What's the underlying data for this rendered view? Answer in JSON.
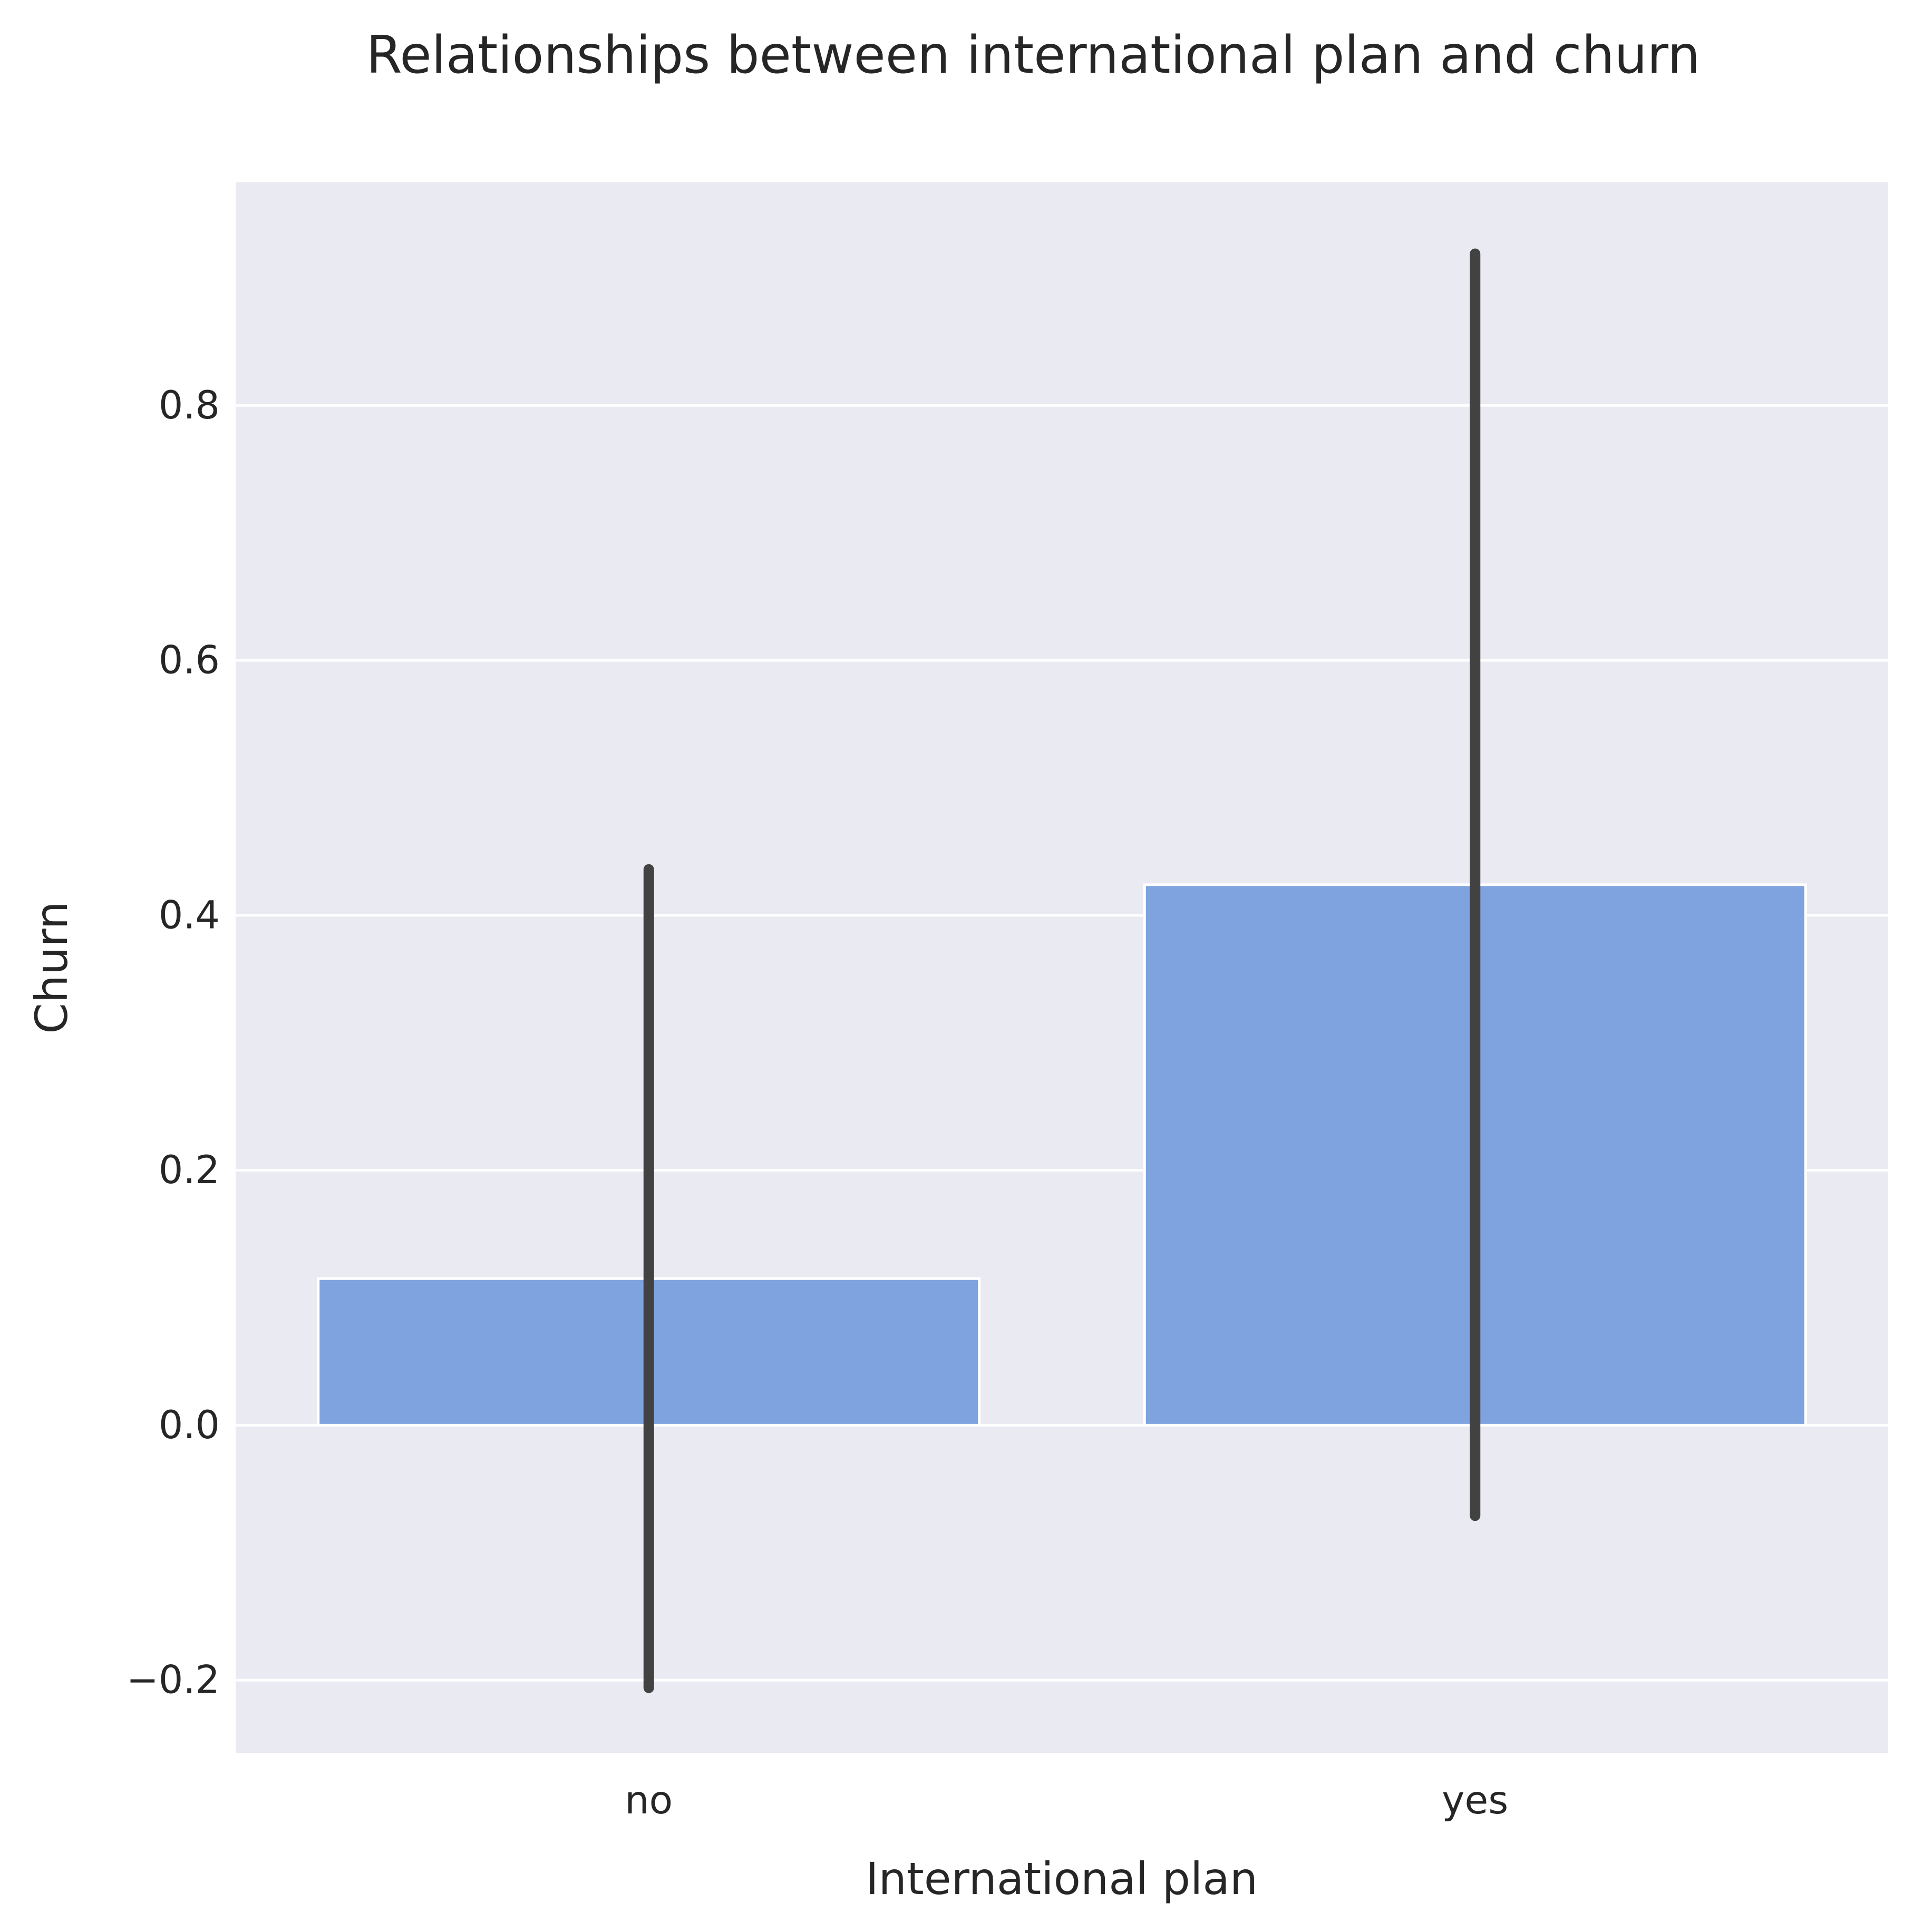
{
  "chart_data": {
    "type": "bar",
    "title": "Relationships between international plan and churn",
    "xlabel": "International plan",
    "ylabel": "Churn",
    "categories": [
      "no",
      "yes"
    ],
    "values": [
      0.115,
      0.424
    ],
    "error_bars": [
      {
        "low": -0.206,
        "high": 0.436
      },
      {
        "low": -0.071,
        "high": 0.919
      }
    ],
    "ylim": [
      -0.257,
      0.975
    ],
    "yticks": [
      -0.2,
      0.0,
      0.2,
      0.4,
      0.6,
      0.8
    ],
    "ytick_labels": [
      "−0.2",
      "0.0",
      "0.2",
      "0.4",
      "0.6",
      "0.8"
    ],
    "grid": true,
    "legend": false
  },
  "colors": {
    "bar": "#7fa3df",
    "bar_edge": "#ffffff",
    "error_bar": "#424242",
    "plot_background": "#eaeaf2",
    "grid": "#ffffff",
    "text": "#262626"
  }
}
